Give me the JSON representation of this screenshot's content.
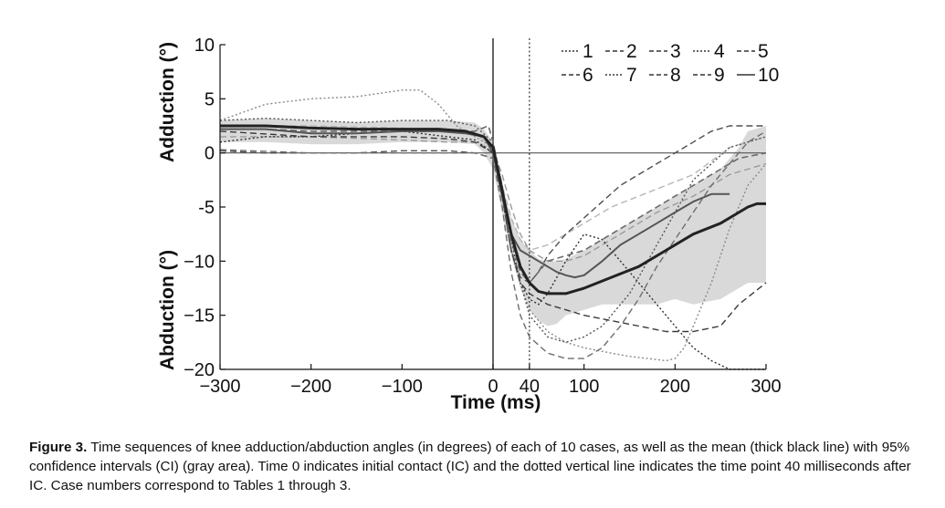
{
  "chart_data": {
    "type": "line",
    "xlabel": "Time (ms)",
    "ylabel_top": "Adduction (°)",
    "ylabel_bottom": "Abduction (°)",
    "xlim": [
      -300,
      300
    ],
    "ylim": [
      -20,
      10
    ],
    "x_ticks": [
      "−300",
      "−200",
      "−100",
      "0",
      "40",
      "100",
      "200",
      "300"
    ],
    "x_tick_values": [
      -300,
      -200,
      -100,
      0,
      40,
      100,
      200,
      300
    ],
    "y_ticks": [
      "10",
      "5",
      "0",
      "-5",
      "−10",
      "−15",
      "−20"
    ],
    "y_tick_values": [
      10,
      5,
      0,
      -5,
      -10,
      -15,
      -20
    ],
    "vertical_lines": [
      {
        "x": 0,
        "style": "solid"
      },
      {
        "x": 40,
        "style": "dotted"
      }
    ],
    "horizontal_lines": [
      {
        "y": 0,
        "style": "solid"
      }
    ],
    "legend_position": "top-right",
    "ci_band": {
      "x": [
        -300,
        -250,
        -200,
        -150,
        -100,
        -50,
        -20,
        -10,
        0,
        10,
        20,
        30,
        40,
        50,
        60,
        70,
        80,
        100,
        120,
        150,
        180,
        200,
        220,
        250,
        270,
        280,
        300
      ],
      "upper": [
        3.0,
        3.2,
        3.0,
        2.8,
        3.0,
        3.0,
        2.8,
        2.2,
        1.0,
        -3.0,
        -6.0,
        -8.0,
        -9.0,
        -9.8,
        -10.0,
        -10.0,
        -9.8,
        -9.0,
        -8.0,
        -6.5,
        -5.0,
        -4.0,
        -3.0,
        -1.5,
        0.5,
        2.0,
        2.5
      ],
      "lower": [
        1.0,
        1.0,
        0.8,
        0.8,
        1.0,
        1.0,
        0.8,
        0.0,
        -1.5,
        -5.5,
        -9.5,
        -12.5,
        -14.5,
        -15.5,
        -16.0,
        -15.8,
        -15.0,
        -14.5,
        -14.0,
        -14.0,
        -14.0,
        -13.5,
        -14.0,
        -13.5,
        -12.5,
        -12.0,
        -12.0
      ]
    },
    "series": [
      {
        "name": "1",
        "style": "dotted",
        "color": "#8a8a8a",
        "width": 1.4,
        "x": [
          -300,
          -250,
          -200,
          -150,
          -100,
          -80,
          -60,
          -40,
          -20,
          0,
          10,
          20,
          30,
          40,
          60,
          80,
          100,
          130,
          150,
          170,
          190,
          200,
          210,
          220,
          240,
          260,
          280,
          300
        ],
        "y": [
          3.0,
          4.5,
          5.0,
          5.2,
          5.8,
          5.8,
          4.5,
          2.5,
          1.5,
          0.5,
          -3.0,
          -8.0,
          -12.0,
          -14.5,
          -16.5,
          -17.5,
          -18.0,
          -18.5,
          -18.8,
          -19.0,
          -19.2,
          -19.0,
          -18.0,
          -16.0,
          -12.0,
          -7.0,
          -3.0,
          -1.0
        ]
      },
      {
        "name": "2",
        "style": "dashed",
        "color": "#b5b5b5",
        "width": 1.4,
        "x": [
          -300,
          -200,
          -100,
          -50,
          -20,
          0,
          10,
          20,
          30,
          40,
          60,
          80,
          100,
          130,
          160,
          190,
          220,
          260,
          300
        ],
        "y": [
          2.5,
          2.5,
          2.3,
          2.0,
          1.8,
          0.5,
          -3.0,
          -6.0,
          -8.0,
          -9.0,
          -8.5,
          -7.5,
          -6.5,
          -5.0,
          -4.0,
          -3.0,
          -2.0,
          0.5,
          1.5
        ]
      },
      {
        "name": "3",
        "style": "dashed",
        "color": "#9a9a9a",
        "width": 1.4,
        "x": [
          -300,
          -200,
          -100,
          -50,
          -20,
          0,
          10,
          20,
          30,
          40,
          60,
          80,
          100,
          120,
          150,
          180,
          220,
          260,
          300
        ],
        "y": [
          1.5,
          1.5,
          1.2,
          1.0,
          1.0,
          0.3,
          -2.0,
          -5.0,
          -7.5,
          -9.0,
          -10.0,
          -10.0,
          -9.5,
          -8.5,
          -7.0,
          -5.5,
          -4.0,
          -2.0,
          -1.0
        ]
      },
      {
        "name": "4",
        "style": "dotted",
        "color": "#2e2e2e",
        "width": 1.4,
        "x": [
          -300,
          -250,
          -200,
          -150,
          -100,
          -50,
          -20,
          0,
          10,
          20,
          30,
          40,
          50,
          60,
          70,
          80,
          100,
          120,
          140,
          160,
          180,
          200,
          220,
          240,
          260,
          280,
          300
        ],
        "y": [
          1.0,
          1.5,
          1.5,
          1.8,
          2.0,
          1.5,
          1.2,
          0.0,
          -4.0,
          -9.0,
          -12.0,
          -13.5,
          -14.0,
          -13.0,
          -11.5,
          -10.0,
          -7.5,
          -8.0,
          -10.0,
          -12.0,
          -14.0,
          -16.0,
          -18.0,
          -19.2,
          -20.0,
          -20.0,
          -20.0
        ]
      },
      {
        "name": "5",
        "style": "dashed",
        "color": "#3a3a3a",
        "width": 1.4,
        "x": [
          -300,
          -200,
          -100,
          -50,
          -20,
          0,
          10,
          20,
          30,
          40,
          60,
          80,
          100,
          130,
          160,
          190,
          220,
          250,
          270,
          300
        ],
        "y": [
          2.0,
          1.5,
          1.5,
          1.3,
          1.0,
          0.0,
          -4.0,
          -9.0,
          -12.0,
          -13.0,
          -14.0,
          -14.5,
          -15.0,
          -15.5,
          -16.0,
          -16.5,
          -16.5,
          -16.0,
          -14.0,
          -12.0
        ]
      },
      {
        "name": "6",
        "style": "dashed",
        "color": "#4f4f4f",
        "width": 1.4,
        "x": [
          -300,
          -250,
          -200,
          -150,
          -100,
          -50,
          -20,
          0,
          10,
          20,
          30,
          40,
          50,
          60,
          80,
          100,
          120,
          140,
          160,
          180,
          200,
          220,
          240,
          260,
          280,
          300
        ],
        "y": [
          0.2,
          0.0,
          0.0,
          0.0,
          0.2,
          0.2,
          0.0,
          -0.5,
          -4.0,
          -9.0,
          -11.5,
          -12.0,
          -11.0,
          -9.5,
          -7.5,
          -6.0,
          -4.5,
          -3.0,
          -2.0,
          -1.0,
          0.0,
          1.0,
          2.0,
          2.5,
          2.5,
          2.5
        ]
      },
      {
        "name": "7",
        "style": "dotted",
        "color": "#555555",
        "width": 1.4,
        "x": [
          -300,
          -250,
          -200,
          -150,
          -100,
          -50,
          -20,
          0,
          10,
          20,
          30,
          40,
          60,
          80,
          100,
          120,
          150,
          170,
          190,
          210,
          220,
          240,
          260,
          280,
          300
        ],
        "y": [
          3.0,
          3.2,
          3.0,
          2.8,
          3.0,
          3.0,
          2.5,
          1.0,
          -3.0,
          -8.0,
          -12.0,
          -15.0,
          -17.0,
          -17.5,
          -17.0,
          -16.0,
          -13.0,
          -10.0,
          -7.0,
          -4.0,
          -2.5,
          -1.0,
          0.5,
          1.0,
          1.5
        ]
      },
      {
        "name": "8",
        "style": "dashed",
        "color": "#6e6e6e",
        "width": 1.4,
        "x": [
          -300,
          -200,
          -100,
          -50,
          -20,
          0,
          10,
          20,
          30,
          40,
          60,
          80,
          100,
          120,
          140,
          160,
          180,
          200,
          220,
          240,
          260,
          280,
          300
        ],
        "y": [
          0.3,
          0.0,
          0.0,
          0.0,
          0.0,
          -0.5,
          -5.0,
          -11.0,
          -15.0,
          -17.0,
          -18.5,
          -19.0,
          -19.0,
          -18.0,
          -16.0,
          -13.5,
          -10.5,
          -8.0,
          -5.5,
          -3.0,
          -1.0,
          1.0,
          2.0
        ]
      },
      {
        "name": "9",
        "style": "dashed",
        "color": "#6b6b6b",
        "width": 1.6,
        "x": [
          -300,
          -250,
          -200,
          -150,
          -100,
          -50,
          -20,
          -5,
          0,
          10,
          20,
          30,
          40,
          50,
          60,
          80,
          100,
          120,
          150,
          180,
          200,
          220,
          250,
          270,
          300
        ],
        "y": [
          2.2,
          2.2,
          2.0,
          2.0,
          2.0,
          2.0,
          2.0,
          2.5,
          1.0,
          -3.0,
          -8.0,
          -11.0,
          -12.0,
          -11.0,
          -10.0,
          -9.5,
          -9.0,
          -8.0,
          -6.5,
          -5.0,
          -4.0,
          -3.0,
          -1.5,
          -0.5,
          0.0
        ]
      },
      {
        "name": "10",
        "style": "solid",
        "color": "#555555",
        "width": 2.0,
        "x": [
          -300,
          -250,
          -200,
          -150,
          -100,
          -60,
          -30,
          -10,
          0,
          10,
          20,
          30,
          40,
          50,
          60,
          70,
          80,
          90,
          100,
          120,
          140,
          160,
          180,
          200,
          220,
          240,
          260
        ],
        "y": [
          2.2,
          2.2,
          1.8,
          1.8,
          2.0,
          2.0,
          1.8,
          1.5,
          0.0,
          -4.0,
          -7.5,
          -9.0,
          -9.5,
          -10.0,
          -10.5,
          -11.0,
          -11.3,
          -11.5,
          -11.3,
          -10.0,
          -8.5,
          -7.5,
          -6.5,
          -5.5,
          -4.5,
          -3.8,
          -3.8
        ]
      },
      {
        "name": "mean",
        "style": "solid",
        "color": "#222222",
        "width": 3.0,
        "x": [
          -300,
          -250,
          -200,
          -150,
          -100,
          -60,
          -30,
          -10,
          0,
          10,
          20,
          30,
          40,
          50,
          60,
          80,
          100,
          130,
          160,
          190,
          220,
          250,
          280,
          290,
          300
        ],
        "y": [
          2.5,
          2.5,
          2.3,
          2.2,
          2.2,
          2.2,
          2.0,
          1.5,
          0.5,
          -3.5,
          -7.5,
          -10.5,
          -12.0,
          -12.8,
          -13.0,
          -13.0,
          -12.5,
          -11.5,
          -10.5,
          -9.0,
          -7.5,
          -6.5,
          -5.0,
          -4.7,
          -4.7
        ]
      }
    ],
    "legend": [
      {
        "label": "1",
        "style": "dotted"
      },
      {
        "label": "2",
        "style": "dashed"
      },
      {
        "label": "3",
        "style": "dashed"
      },
      {
        "label": "4",
        "style": "dotted"
      },
      {
        "label": "5",
        "style": "dashed"
      },
      {
        "label": "6",
        "style": "dashed"
      },
      {
        "label": "7",
        "style": "dotted"
      },
      {
        "label": "8",
        "style": "dashed"
      },
      {
        "label": "9",
        "style": "dashed"
      },
      {
        "label": "10",
        "style": "solid"
      }
    ]
  },
  "caption": {
    "label": "Figure 3.",
    "text": " Time sequences of knee adduction/abduction angles (in degrees) of each of 10 cases, as well as the mean (thick black line) with 95% confidence intervals (CI) (gray area). Time 0 indicates initial contact (IC) and the dotted vertical line indicates the time point 40 milliseconds after IC. Case numbers correspond to Tables 1 through 3."
  }
}
